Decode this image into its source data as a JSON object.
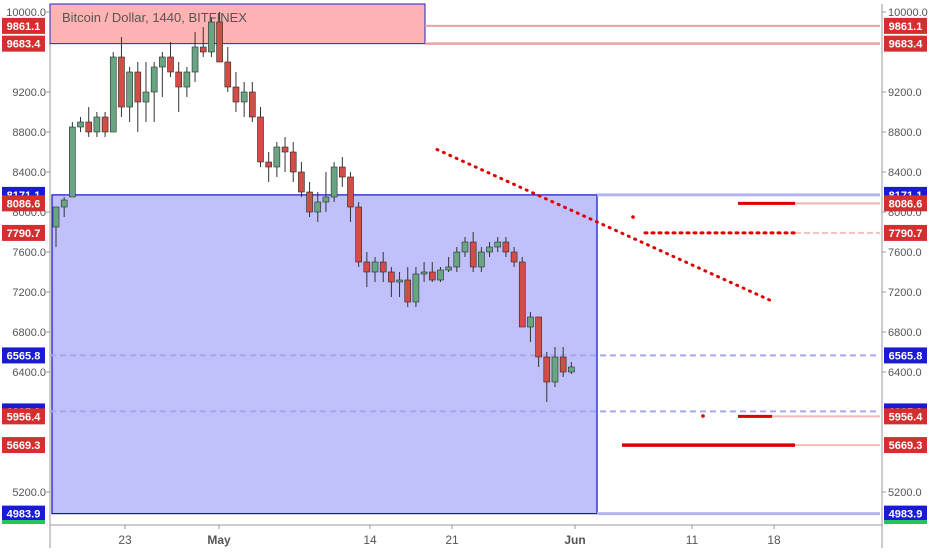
{
  "title": "Bitcoin / Dollar, 1440, BITFINEX",
  "chart_data": {
    "type": "candlestick",
    "symbol": "Bitcoin / Dollar",
    "interval": "1440",
    "exchange": "BITFINEX",
    "ylim": [
      4900,
      10080
    ],
    "y_ticks": [
      5200,
      6400,
      6800,
      7200,
      7600,
      8000,
      8400,
      8800,
      9200,
      10000
    ],
    "x_ticks": [
      "23",
      "May",
      "14",
      "21",
      "Jun",
      "11",
      "18"
    ],
    "price_labels": [
      {
        "text": "9861.1",
        "value": 9861.1,
        "color": "#d32f2f"
      },
      {
        "text": "9683.4",
        "value": 9683.4,
        "color": "#d32f2f"
      },
      {
        "text": "8171.1",
        "value": 8171.1,
        "color": "#1a1ad6"
      },
      {
        "text": "8086.6",
        "value": 8086.6,
        "color": "#d32f2f"
      },
      {
        "text": "7790.7",
        "value": 7790.7,
        "color": "#d32f2f"
      },
      {
        "text": "6565.8",
        "value": 6565.8,
        "color": "#1a1ad6"
      },
      {
        "text": "6005.9",
        "value": 6005.9,
        "color": "#1a1ad6"
      },
      {
        "text": "5956.4",
        "value": 5956.4,
        "color": "#d32f2f"
      },
      {
        "text": "5669.3",
        "value": 5669.3,
        "color": "#d32f2f"
      },
      {
        "text": "4983.9",
        "value": 4983.9,
        "color": "#1a1ad6"
      }
    ],
    "candles": [
      {
        "o": 7850,
        "h": 8050,
        "l": 7650,
        "c": 8050
      },
      {
        "o": 8050,
        "h": 8150,
        "l": 7950,
        "c": 8120
      },
      {
        "o": 8150,
        "h": 8900,
        "l": 8150,
        "c": 8850
      },
      {
        "o": 8850,
        "h": 8950,
        "l": 8800,
        "c": 8900
      },
      {
        "o": 8900,
        "h": 9050,
        "l": 8750,
        "c": 8800
      },
      {
        "o": 8800,
        "h": 9000,
        "l": 8750,
        "c": 8950
      },
      {
        "o": 8950,
        "h": 9000,
        "l": 8750,
        "c": 8800
      },
      {
        "o": 8800,
        "h": 9600,
        "l": 8800,
        "c": 9550
      },
      {
        "o": 9550,
        "h": 9750,
        "l": 8950,
        "c": 9050
      },
      {
        "o": 9050,
        "h": 9450,
        "l": 8900,
        "c": 9400
      },
      {
        "o": 9400,
        "h": 9500,
        "l": 8800,
        "c": 9100
      },
      {
        "o": 9100,
        "h": 9500,
        "l": 8900,
        "c": 9200
      },
      {
        "o": 9200,
        "h": 9500,
        "l": 8900,
        "c": 9450
      },
      {
        "o": 9450,
        "h": 9600,
        "l": 9150,
        "c": 9550
      },
      {
        "o": 9550,
        "h": 9700,
        "l": 9350,
        "c": 9400
      },
      {
        "o": 9400,
        "h": 9500,
        "l": 9000,
        "c": 9250
      },
      {
        "o": 9250,
        "h": 9450,
        "l": 9150,
        "c": 9400
      },
      {
        "o": 9400,
        "h": 9800,
        "l": 9300,
        "c": 9650
      },
      {
        "o": 9650,
        "h": 9850,
        "l": 9550,
        "c": 9600
      },
      {
        "o": 9600,
        "h": 9950,
        "l": 9550,
        "c": 9900
      },
      {
        "o": 9900,
        "h": 10000,
        "l": 9500,
        "c": 9500
      },
      {
        "o": 9500,
        "h": 9650,
        "l": 9200,
        "c": 9250
      },
      {
        "o": 9250,
        "h": 9400,
        "l": 9000,
        "c": 9100
      },
      {
        "o": 9100,
        "h": 9300,
        "l": 8950,
        "c": 9200
      },
      {
        "o": 9200,
        "h": 9300,
        "l": 8900,
        "c": 8950
      },
      {
        "o": 8950,
        "h": 9050,
        "l": 8450,
        "c": 8500
      },
      {
        "o": 8500,
        "h": 8600,
        "l": 8300,
        "c": 8450
      },
      {
        "o": 8450,
        "h": 8700,
        "l": 8350,
        "c": 8650
      },
      {
        "o": 8650,
        "h": 8750,
        "l": 8400,
        "c": 8600
      },
      {
        "o": 8600,
        "h": 8700,
        "l": 8300,
        "c": 8400
      },
      {
        "o": 8400,
        "h": 8500,
        "l": 8150,
        "c": 8200
      },
      {
        "o": 8200,
        "h": 8300,
        "l": 7950,
        "c": 8000
      },
      {
        "o": 8000,
        "h": 8200,
        "l": 7900,
        "c": 8100
      },
      {
        "o": 8100,
        "h": 8400,
        "l": 8000,
        "c": 8150
      },
      {
        "o": 8150,
        "h": 8500,
        "l": 8100,
        "c": 8450
      },
      {
        "o": 8450,
        "h": 8550,
        "l": 8250,
        "c": 8350
      },
      {
        "o": 8350,
        "h": 8400,
        "l": 7900,
        "c": 8050
      },
      {
        "o": 8050,
        "h": 8100,
        "l": 7450,
        "c": 7500
      },
      {
        "o": 7500,
        "h": 7600,
        "l": 7250,
        "c": 7400
      },
      {
        "o": 7400,
        "h": 7550,
        "l": 7300,
        "c": 7500
      },
      {
        "o": 7500,
        "h": 7600,
        "l": 7300,
        "c": 7400
      },
      {
        "o": 7400,
        "h": 7450,
        "l": 7150,
        "c": 7300
      },
      {
        "o": 7300,
        "h": 7400,
        "l": 7150,
        "c": 7320
      },
      {
        "o": 7320,
        "h": 7450,
        "l": 7050,
        "c": 7100
      },
      {
        "o": 7100,
        "h": 7450,
        "l": 7050,
        "c": 7380
      },
      {
        "o": 7380,
        "h": 7500,
        "l": 7300,
        "c": 7400
      },
      {
        "o": 7400,
        "h": 7500,
        "l": 7300,
        "c": 7320
      },
      {
        "o": 7320,
        "h": 7450,
        "l": 7300,
        "c": 7420
      },
      {
        "o": 7420,
        "h": 7550,
        "l": 7400,
        "c": 7450
      },
      {
        "o": 7450,
        "h": 7650,
        "l": 7400,
        "c": 7600
      },
      {
        "o": 7600,
        "h": 7750,
        "l": 7550,
        "c": 7700
      },
      {
        "o": 7700,
        "h": 7800,
        "l": 7400,
        "c": 7450
      },
      {
        "o": 7450,
        "h": 7650,
        "l": 7400,
        "c": 7600
      },
      {
        "o": 7600,
        "h": 7700,
        "l": 7550,
        "c": 7650
      },
      {
        "o": 7650,
        "h": 7750,
        "l": 7600,
        "c": 7700
      },
      {
        "o": 7700,
        "h": 7750,
        "l": 7550,
        "c": 7600
      },
      {
        "o": 7600,
        "h": 7650,
        "l": 7450,
        "c": 7500
      },
      {
        "o": 7500,
        "h": 7550,
        "l": 6850,
        "c": 6850
      },
      {
        "o": 6850,
        "h": 7000,
        "l": 6700,
        "c": 6950
      },
      {
        "o": 6950,
        "h": 6950,
        "l": 6450,
        "c": 6550
      },
      {
        "o": 6550,
        "h": 6600,
        "l": 6100,
        "c": 6300
      },
      {
        "o": 6300,
        "h": 6650,
        "l": 6250,
        "c": 6550
      },
      {
        "o": 6550,
        "h": 6650,
        "l": 6350,
        "c": 6400
      },
      {
        "o": 6400,
        "h": 6500,
        "l": 6380,
        "c": 6450
      }
    ],
    "zones": [
      {
        "name": "red-zone",
        "from": 9683.4,
        "to": 10080,
        "color": "#ff9a9a"
      },
      {
        "name": "blue-zone",
        "from": 4983.9,
        "to": 8171.1,
        "color": "#8c8cf7"
      }
    ],
    "colors": {
      "up": "#6aa583",
      "down": "#d24d45",
      "red_label": "#d32f2f",
      "blue_label": "#1a1ad6",
      "axis_text": "#555555"
    }
  }
}
